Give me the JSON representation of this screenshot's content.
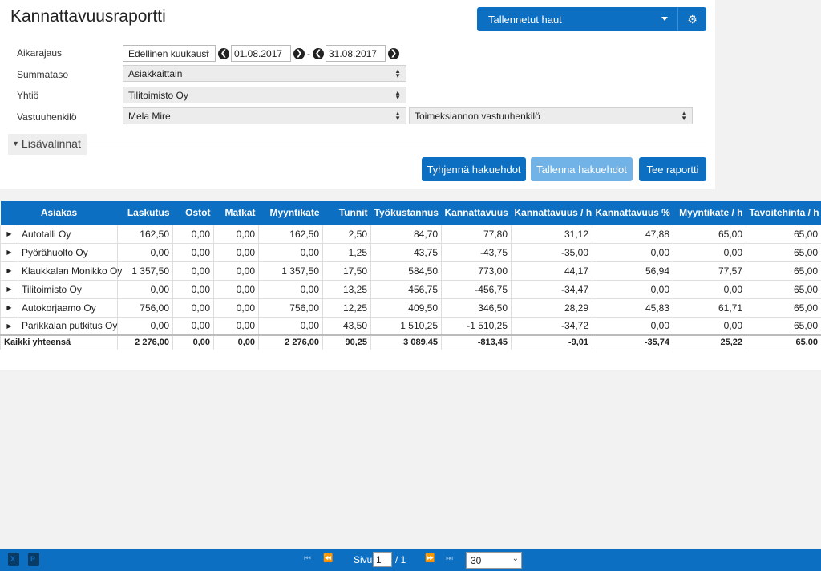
{
  "title": "Kannattavuusraportti",
  "saved_searches": {
    "label": "Tallennetut haut",
    "caret_icon": "chevron-down-icon",
    "settings_icon": "gears-icon"
  },
  "filters": {
    "time": {
      "label": "Aikarajaus",
      "period": "Edellinen kuukausi",
      "start": "01.08.2017",
      "end": "31.08.2017",
      "separator": "-"
    },
    "sum_level": {
      "label": "Summataso",
      "value": "Asiakkaittain"
    },
    "company": {
      "label": "Yhtiö",
      "value": "Tilitoimisto Oy"
    },
    "responsible": {
      "label": "Vastuuhenkilö",
      "value": "Mela Mire",
      "role": "Toimeksiannon vastuuhenkilö"
    }
  },
  "more_options": "Lisävalinnat",
  "buttons": {
    "clear": "Tyhjennä hakuehdot",
    "save": "Tallenna hakuehdot",
    "run": "Tee raportti"
  },
  "table": {
    "headers": [
      "Asiakas",
      "Laskutus",
      "Ostot",
      "Matkat",
      "Myyntikate",
      "Tunnit",
      "Työkustannus",
      "Kannattavuus",
      "Kannattavuus / h",
      "Kannattavuus %",
      "Myyntikate / h",
      "Tavoitehinta / h"
    ],
    "rows": [
      [
        "Autotalli Oy",
        "162,50",
        "0,00",
        "0,00",
        "162,50",
        "2,50",
        "84,70",
        "77,80",
        "31,12",
        "47,88",
        "65,00",
        "65,00"
      ],
      [
        "Pyörähuolto Oy",
        "0,00",
        "0,00",
        "0,00",
        "0,00",
        "1,25",
        "43,75",
        "-43,75",
        "-35,00",
        "0,00",
        "0,00",
        "65,00"
      ],
      [
        "Klaukkalan Monikko Oy",
        "1 357,50",
        "0,00",
        "0,00",
        "1 357,50",
        "17,50",
        "584,50",
        "773,00",
        "44,17",
        "56,94",
        "77,57",
        "65,00"
      ],
      [
        "Tilitoimisto Oy",
        "0,00",
        "0,00",
        "0,00",
        "0,00",
        "13,25",
        "456,75",
        "-456,75",
        "-34,47",
        "0,00",
        "0,00",
        "65,00"
      ],
      [
        "Autokorjaamo Oy",
        "756,00",
        "0,00",
        "0,00",
        "756,00",
        "12,25",
        "409,50",
        "346,50",
        "28,29",
        "45,83",
        "61,71",
        "65,00"
      ],
      [
        "Parikkalan putkitus Oy",
        "0,00",
        "0,00",
        "0,00",
        "0,00",
        "43,50",
        "1 510,25",
        "-1 510,25",
        "-34,72",
        "0,00",
        "0,00",
        "65,00"
      ]
    ],
    "total": [
      "Kaikki yhteensä",
      "2 276,00",
      "0,00",
      "0,00",
      "2 276,00",
      "90,25",
      "3 089,45",
      "-813,45",
      "-9,01",
      "-35,74",
      "25,22",
      "65,00"
    ]
  },
  "pager": {
    "page_label": "Sivu",
    "page": "1",
    "of": "/ 1",
    "page_size": "30"
  }
}
